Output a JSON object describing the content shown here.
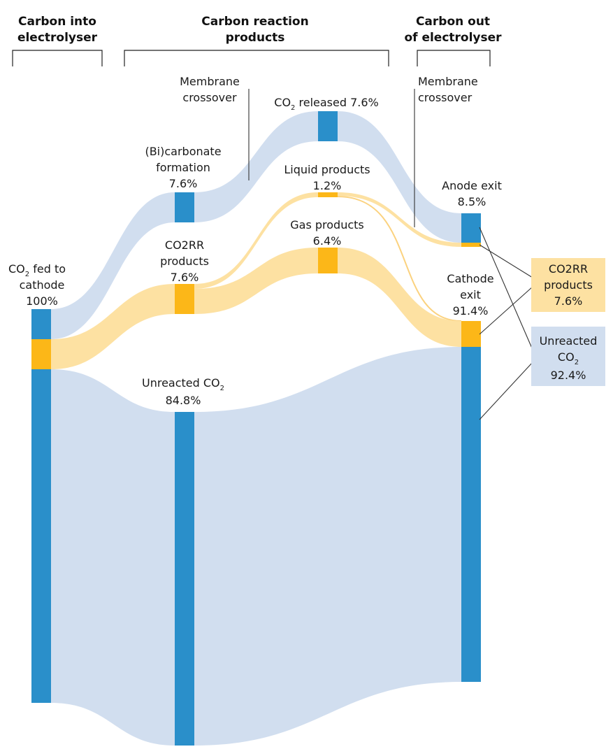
{
  "headers": {
    "carbon_in": [
      "Carbon into",
      "electrolyser"
    ],
    "reaction_products": [
      "Carbon reaction",
      "products"
    ],
    "carbon_out": [
      "Carbon out",
      "of electrolyser"
    ]
  },
  "nodes": {
    "co2_fed": {
      "line1_pre": "CO",
      "line1_sub": "2",
      "line1_post": " fed to",
      "line2": "cathode",
      "value": "100%"
    },
    "bicarbonate": {
      "line1": "(Bi)carbonate",
      "line2": "formation",
      "value": "7.6%"
    },
    "co2rr": {
      "line1": "CO2RR",
      "line2": "products",
      "value": "7.6%"
    },
    "unreacted": {
      "pre": "Unreacted CO",
      "sub": "2",
      "value": "84.8%"
    },
    "co2_released": {
      "pre": "CO",
      "sub": "2",
      "post": " released 7.6%"
    },
    "liquid": {
      "label": "Liquid products",
      "value": "1.2%"
    },
    "gas": {
      "label": "Gas products",
      "value": "6.4%"
    },
    "anode": {
      "label": "Anode exit",
      "value": "8.5%"
    },
    "cathode": {
      "line1": "Cathode",
      "line2": "exit",
      "value": "91.4%"
    }
  },
  "membrane_left": [
    "Membrane",
    "crossover"
  ],
  "membrane_right": [
    "Membrane",
    "crossover"
  ],
  "summary": {
    "co2rr": {
      "line1": "CO2RR",
      "line2": "products",
      "value": "7.6%"
    },
    "unreacted": {
      "line1": "Unreacted",
      "line2_pre": "CO",
      "line2_sub": "2",
      "value": "92.4%"
    }
  },
  "colors": {
    "node_blue": "#2a8fca",
    "node_yellow": "#fcb718",
    "flow_blue": "#d1deef",
    "flow_yellow": "#fde1a2"
  }
}
